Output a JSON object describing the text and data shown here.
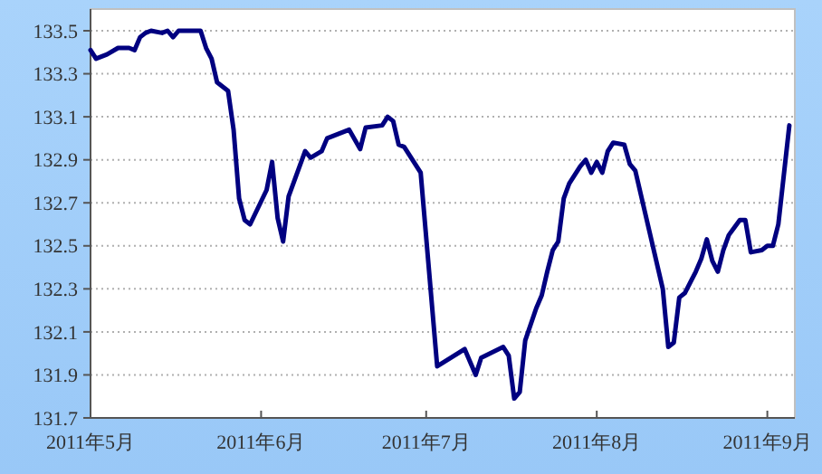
{
  "chart_data": {
    "type": "line",
    "x": [
      "2011-05-01",
      "2011-05-02",
      "2011-05-04",
      "2011-05-06",
      "2011-05-08",
      "2011-05-09",
      "2011-05-10",
      "2011-05-11",
      "2011-05-12",
      "2011-05-14",
      "2011-05-15",
      "2011-05-16",
      "2011-05-17",
      "2011-05-20",
      "2011-05-21",
      "2011-05-22",
      "2011-05-23",
      "2011-05-24",
      "2011-05-26",
      "2011-05-27",
      "2011-05-28",
      "2011-05-29",
      "2011-05-30",
      "2011-06-02",
      "2011-06-03",
      "2011-06-04",
      "2011-06-05",
      "2011-06-06",
      "2011-06-09",
      "2011-06-10",
      "2011-06-12",
      "2011-06-13",
      "2011-06-17",
      "2011-06-19",
      "2011-06-20",
      "2011-06-23",
      "2011-06-24",
      "2011-06-25",
      "2011-06-26",
      "2011-06-27",
      "2011-06-30",
      "2011-07-03",
      "2011-07-08",
      "2011-07-10",
      "2011-07-11",
      "2011-07-15",
      "2011-07-16",
      "2011-07-17",
      "2011-07-18",
      "2011-07-19",
      "2011-07-21",
      "2011-07-22",
      "2011-07-23",
      "2011-07-24",
      "2011-07-25",
      "2011-07-26",
      "2011-07-27",
      "2011-07-29",
      "2011-07-30",
      "2011-07-31",
      "2011-08-01",
      "2011-08-02",
      "2011-08-03",
      "2011-08-04",
      "2011-08-06",
      "2011-08-07",
      "2011-08-08",
      "2011-08-13",
      "2011-08-14",
      "2011-08-15",
      "2011-08-16",
      "2011-08-17",
      "2011-08-19",
      "2011-08-20",
      "2011-08-21",
      "2011-08-22",
      "2011-08-23",
      "2011-08-24",
      "2011-08-25",
      "2011-08-27",
      "2011-08-28",
      "2011-08-29",
      "2011-08-31",
      "2011-09-01",
      "2011-09-02",
      "2011-09-03",
      "2011-09-05"
    ],
    "series": [
      {
        "color": "#000080",
        "values": [
          133.41,
          133.37,
          133.39,
          133.42,
          133.42,
          133.41,
          133.47,
          133.49,
          133.5,
          133.49,
          133.5,
          133.47,
          133.5,
          133.5,
          133.5,
          133.42,
          133.37,
          133.26,
          133.22,
          133.04,
          132.72,
          132.62,
          132.6,
          132.76,
          132.89,
          132.63,
          132.52,
          132.73,
          132.94,
          132.91,
          132.94,
          133.0,
          133.04,
          132.95,
          133.05,
          133.06,
          133.1,
          133.08,
          132.97,
          132.96,
          132.84,
          131.94,
          132.02,
          131.9,
          131.98,
          132.03,
          131.99,
          131.79,
          131.82,
          132.06,
          132.21,
          132.27,
          132.38,
          132.48,
          132.52,
          132.72,
          132.79,
          132.87,
          132.9,
          132.84,
          132.89,
          132.84,
          132.94,
          132.98,
          132.97,
          132.88,
          132.85,
          132.3,
          132.03,
          132.05,
          132.26,
          132.28,
          132.38,
          132.44,
          132.53,
          132.43,
          132.38,
          132.48,
          132.55,
          132.62,
          132.62,
          132.47,
          132.48,
          132.5,
          132.5,
          132.6,
          133.06
        ]
      }
    ],
    "xlim": [
      "2011-05-01",
      "2011-09-06"
    ],
    "xticks": [
      {
        "value": "2011-05-01",
        "label": "2011年5月"
      },
      {
        "value": "2011-06-01",
        "label": "2011年6月"
      },
      {
        "value": "2011-07-01",
        "label": "2011年7月"
      },
      {
        "value": "2011-08-01",
        "label": "2011年8月"
      },
      {
        "value": "2011-09-01",
        "label": "2011年9月"
      }
    ],
    "ylim": [
      131.7,
      133.5
    ],
    "yticks": [
      131.7,
      131.9,
      132.1,
      132.3,
      132.5,
      132.7,
      132.9,
      133.1,
      133.3,
      133.5
    ],
    "grid": "y",
    "marker": "none",
    "line_style": "solid"
  }
}
